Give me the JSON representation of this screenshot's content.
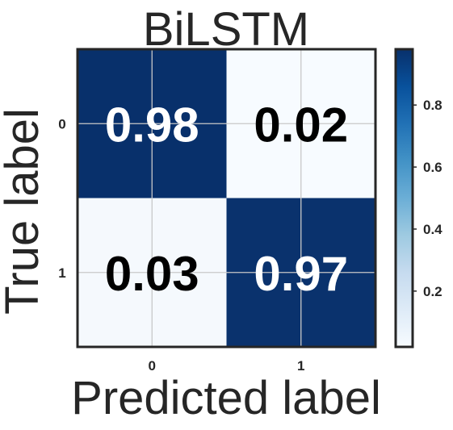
{
  "chart_data": {
    "type": "heatmap",
    "title": "BiLSTM",
    "xlabel": "Predicted label",
    "ylabel": "True label",
    "x_categories": [
      "0",
      "1"
    ],
    "y_categories": [
      "0",
      "1"
    ],
    "values": [
      [
        0.98,
        0.02
      ],
      [
        0.03,
        0.97
      ]
    ],
    "value_labels": [
      [
        "0.98",
        "0.02"
      ],
      [
        "0.03",
        "0.97"
      ]
    ],
    "colormap": "Blues",
    "color_range": [
      0.02,
      0.98
    ],
    "colorbar_ticks": [
      "0.2",
      "0.4",
      "0.6",
      "0.8"
    ],
    "colorbar_tick_values": [
      0.2,
      0.4,
      0.6,
      0.8
    ],
    "grid": true,
    "colors": {
      "low": "#f7fbff",
      "high": "#08306b",
      "text_on_dark": "#ffffff",
      "text_on_light": "#000000"
    }
  }
}
